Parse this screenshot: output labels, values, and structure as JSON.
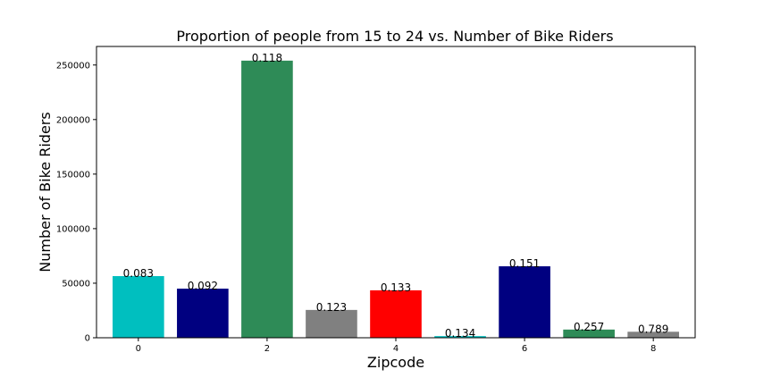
{
  "chart_data": {
    "type": "bar",
    "title": "Proportion of people from 15 to 24 vs. Number of Bike Riders",
    "xlabel": "Zipcode",
    "ylabel": "Number of Bike Riders",
    "x": [
      0,
      1,
      2,
      3,
      4,
      5,
      6,
      7,
      8
    ],
    "values": [
      56500,
      45000,
      254000,
      25500,
      43500,
      1500,
      65500,
      7500,
      5500
    ],
    "data_labels": [
      "0.083",
      "0.092",
      "0.118",
      "0.123",
      "0.133",
      "0.134",
      "0.151",
      "0.257",
      "0.789"
    ],
    "colors": [
      "#00bfbf",
      "#000080",
      "#2e8b57",
      "#808080",
      "#ff0000",
      "#00bfbf",
      "#000080",
      "#2e8b57",
      "#808080"
    ],
    "xticks": [
      0,
      2,
      4,
      6,
      8
    ],
    "xtick_labels": [
      "0",
      "2",
      "4",
      "6",
      "8"
    ],
    "xlim": [
      -0.65,
      8.65
    ],
    "yticks": [
      0,
      50000,
      100000,
      150000,
      200000,
      250000
    ],
    "ytick_labels": [
      "0",
      "50000",
      "100000",
      "150000",
      "200000",
      "250000"
    ],
    "ylim": [
      0,
      267000
    ],
    "grid": false,
    "legend": "none"
  }
}
